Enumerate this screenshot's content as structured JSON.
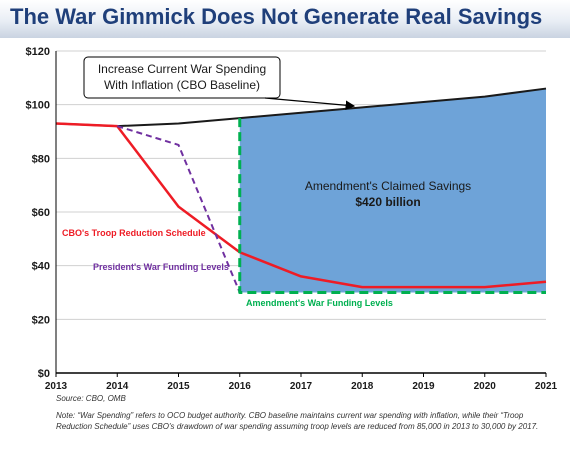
{
  "header": {
    "title": "The War Gimmick Does Not Generate Real Savings"
  },
  "footer": {
    "source": "Source: CBO, OMB",
    "note": "Note: “War Spending” refers to OCO budget authority. CBO baseline maintains current war spending with inflation, while their “Troop Reduction Schedule” uses CBO's drawdown of war spending assuming troop levels are reduced from 85,000 in 2013 to 30,000 by 2017."
  },
  "chart_data": {
    "type": "line",
    "title": "The War Gimmick Does Not Generate Real Savings",
    "xlabel": "",
    "ylabel": "",
    "x": [
      2013,
      2014,
      2015,
      2016,
      2017,
      2018,
      2019,
      2020,
      2021
    ],
    "x_ticks": [
      "2013",
      "2014",
      "2015",
      "2016",
      "2017",
      "2018",
      "2019",
      "2020",
      "2021"
    ],
    "y_ticks": [
      "$0",
      "$20",
      "$40",
      "$60",
      "$80",
      "$100",
      "$120"
    ],
    "ylim": [
      0,
      120
    ],
    "grid": true,
    "series": [
      {
        "name": "Increase Current War Spending With Inflation (CBO Baseline)",
        "color": "#1a1a1a",
        "style": "solid",
        "points": [
          [
            2013,
            93
          ],
          [
            2014,
            92
          ],
          [
            2015,
            93
          ],
          [
            2016,
            95
          ],
          [
            2017,
            97
          ],
          [
            2018,
            99
          ],
          [
            2019,
            101
          ],
          [
            2020,
            103
          ],
          [
            2021,
            106
          ]
        ]
      },
      {
        "name": "CBO's Troop Reduction Schedule",
        "color": "#ee1c25",
        "style": "solid",
        "points": [
          [
            2013,
            93
          ],
          [
            2014,
            92
          ],
          [
            2015,
            62
          ],
          [
            2016,
            45
          ],
          [
            2017,
            36
          ],
          [
            2018,
            32
          ],
          [
            2019,
            32
          ],
          [
            2020,
            32
          ],
          [
            2021,
            34
          ]
        ]
      },
      {
        "name": "President's War Funding Levels",
        "color": "#7030a0",
        "style": "dashed",
        "points": [
          [
            2014,
            92
          ],
          [
            2015,
            85
          ],
          [
            2016,
            30
          ]
        ]
      },
      {
        "name": "Amendment's War Funding Levels",
        "color": "#00b050",
        "style": "dashed",
        "points": [
          [
            2016,
            95
          ],
          [
            2016,
            30
          ],
          [
            2021,
            30
          ]
        ]
      }
    ],
    "shaded_area": {
      "label": "Amendment's Claimed Savings",
      "value_label": "$420 billion",
      "color": "#6ea3d8",
      "from_x": 2016,
      "to_x": 2021,
      "lower_y": 30
    },
    "annotations": {
      "baseline_label_line1": "Increase Current War Spending",
      "baseline_label_line2": "With Inflation (CBO Baseline)",
      "savings_label": "Amendment's Claimed Savings",
      "savings_value": "$420 billion",
      "troop_label": "CBO's Troop Reduction Schedule",
      "president_label": "President's War Funding Levels",
      "amendment_label": "Amendment's War Funding Levels"
    }
  }
}
